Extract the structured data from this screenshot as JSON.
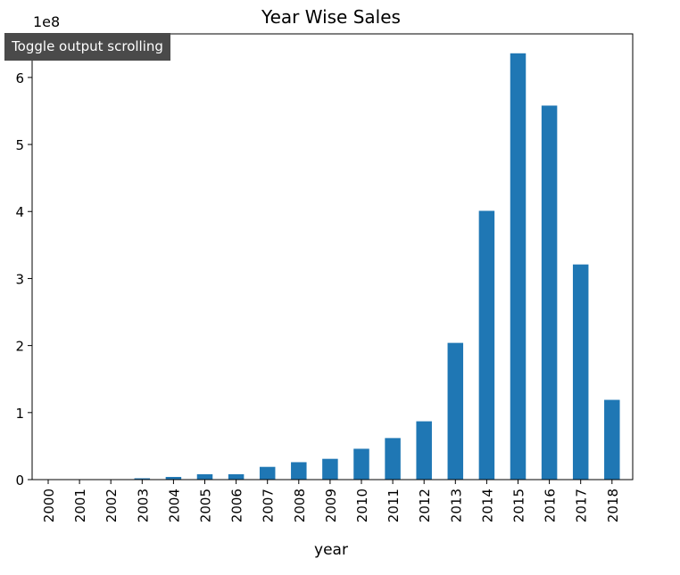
{
  "tooltip": {
    "label": "Toggle output scrolling"
  },
  "chart_data": {
    "type": "bar",
    "title": "Year Wise Sales",
    "xlabel": "year",
    "ylabel": "",
    "scale_label": "1e8",
    "ylim": [
      0,
      6.65
    ],
    "yticks": [
      0,
      1,
      2,
      3,
      4,
      5,
      6
    ],
    "grid": false,
    "legend": "none",
    "bar_color": "#1f77b4",
    "categories": [
      "2000",
      "2001",
      "2002",
      "2003",
      "2004",
      "2005",
      "2006",
      "2007",
      "2008",
      "2009",
      "2010",
      "2011",
      "2012",
      "2013",
      "2014",
      "2015",
      "2016",
      "2017",
      "2018"
    ],
    "values": [
      0.001,
      0.001,
      0.001,
      0.02,
      0.04,
      0.08,
      0.08,
      0.19,
      0.26,
      0.31,
      0.46,
      0.62,
      0.87,
      2.04,
      4.01,
      6.36,
      5.58,
      3.21,
      1.19
    ]
  }
}
